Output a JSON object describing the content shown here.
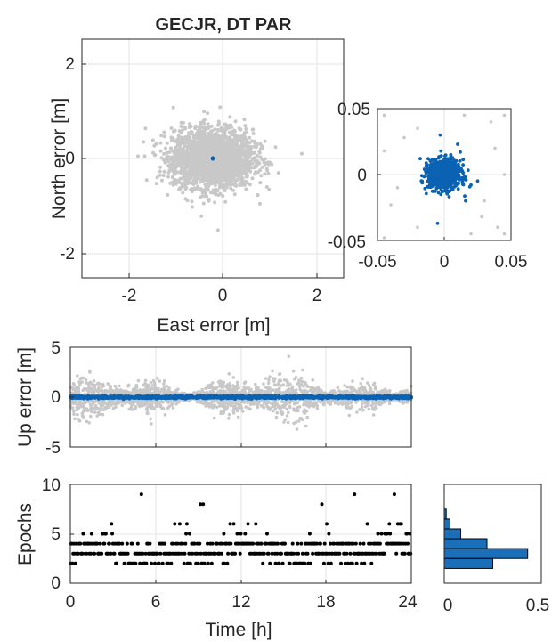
{
  "colors": {
    "float": "#c8c8c8",
    "fixed": "#0b62b3",
    "epochs": "#000000",
    "hist_fill": "#1a6fb8",
    "axes": "#262626",
    "grid": "#e3e3e3"
  },
  "chart_data": [
    {
      "id": "en_scatter",
      "type": "scatter",
      "title": "GECJR, DT PAR",
      "xlabel": "East error [m]",
      "ylabel": "North error [m]",
      "xlim": [
        -2.5,
        2.5
      ],
      "ylim": [
        -2.5,
        2.5
      ],
      "xticks": [
        "-2",
        "0",
        "2"
      ],
      "yticks": [
        "-2",
        "0",
        "2"
      ],
      "grid": true,
      "series": [
        {
          "role": "float",
          "center": [
            0.0,
            0.0
          ],
          "sd": [
            0.38,
            0.3
          ],
          "outliers": [
            [
              -1.3,
              0.05
            ],
            [
              -0.6,
              0.75
            ],
            [
              0.1,
              -1.5
            ],
            [
              1.7,
              0.1
            ],
            [
              0.9,
              -0.95
            ],
            [
              -0.1,
              0.95
            ]
          ]
        },
        {
          "role": "fixed",
          "center": [
            0.0,
            0.0
          ],
          "sd": [
            0.005,
            0.005
          ]
        }
      ]
    },
    {
      "id": "en_zoom",
      "type": "scatter",
      "xlim": [
        -0.05,
        0.05
      ],
      "ylim": [
        -0.05,
        0.05
      ],
      "xticks": [
        "-0.05",
        "0",
        "0.05"
      ],
      "yticks": [
        "-0.05",
        "0",
        "0.05"
      ],
      "grid": true,
      "series": [
        {
          "role": "float",
          "points": [
            [
              -0.045,
              0.045
            ],
            [
              -0.04,
              -0.023
            ],
            [
              -0.045,
              -0.048
            ],
            [
              -0.03,
              0.028
            ],
            [
              0.035,
              0.04
            ],
            [
              0.045,
              0.045
            ],
            [
              0.045,
              -0.045
            ],
            [
              0.04,
              -0.04
            ],
            [
              0.028,
              -0.032
            ],
            [
              -0.02,
              0.035
            ],
            [
              0.045,
              0.0
            ],
            [
              0.02,
              -0.045
            ],
            [
              0.015,
              0.045
            ],
            [
              -0.045,
              0.018
            ],
            [
              0.03,
              -0.02
            ],
            [
              -0.02,
              -0.04
            ],
            [
              0.038,
              0.02
            ],
            [
              -0.035,
              -0.01
            ]
          ]
        },
        {
          "role": "fixed",
          "center": [
            0.0,
            0.0
          ],
          "sd": [
            0.006,
            0.006
          ],
          "outliers": [
            [
              -0.003,
              0.03
            ],
            [
              -0.005,
              -0.037
            ],
            [
              0.01,
              0.023
            ],
            [
              -0.018,
              0.012
            ],
            [
              0.016,
              -0.02
            ],
            [
              0.02,
              -0.008
            ],
            [
              0.012,
              0.017
            ]
          ]
        }
      ]
    },
    {
      "id": "up_series",
      "type": "scatter",
      "ylabel": "Up error [m]",
      "xlim": [
        0,
        24
      ],
      "ylim": [
        -5,
        5
      ],
      "yticks": [
        "-5",
        "0",
        "5"
      ],
      "grid": true,
      "series": [
        {
          "role": "float",
          "mean": 0.0,
          "sd": 0.8
        },
        {
          "role": "fixed",
          "mean": 0.0,
          "sd": 0.06
        }
      ]
    },
    {
      "id": "epochs_series",
      "type": "scatter",
      "xlabel": "Time [h]",
      "ylabel": "Epochs",
      "xlim": [
        0,
        24
      ],
      "ylim": [
        0,
        10
      ],
      "xticks": [
        "0",
        "6",
        "12",
        "18",
        "24"
      ],
      "yticks": [
        "0",
        "5",
        "10"
      ],
      "grid": true,
      "max_epochs": 9
    },
    {
      "id": "epochs_hist",
      "type": "bar",
      "orientation": "horizontal",
      "xlim": [
        0,
        0.5
      ],
      "xticks": [
        "0",
        "0.5"
      ],
      "ylim": [
        0,
        10
      ],
      "categories": [
        2,
        3,
        4,
        5,
        6,
        7
      ],
      "values": [
        0.25,
        0.43,
        0.22,
        0.085,
        0.03,
        0.01
      ]
    }
  ]
}
